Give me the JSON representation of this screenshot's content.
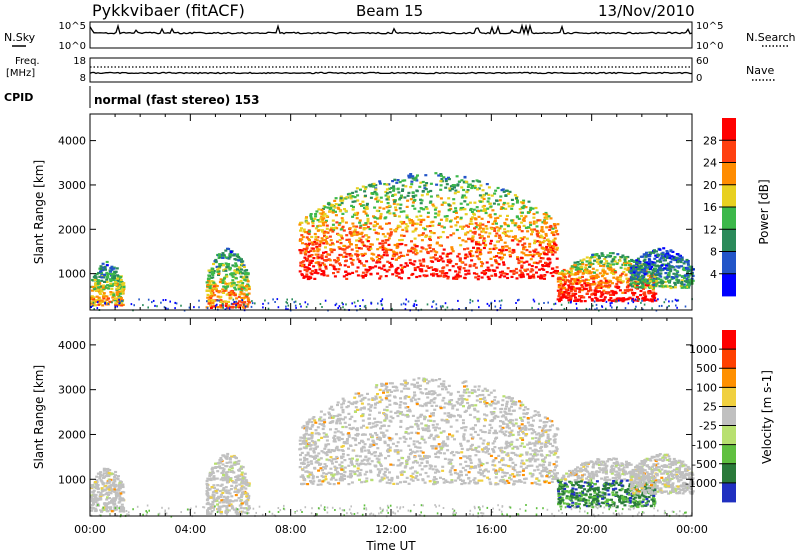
{
  "header": {
    "title": "Pykkvibaer (fitACF)",
    "beam": "Beam 15",
    "date": "13/Nov/2010"
  },
  "top_panels": {
    "nsky_label": "N.Sky",
    "nsky_ticks": [
      "10^5",
      "10^0"
    ],
    "nsearch_label": "N.Search",
    "nsearch_ticks": [
      "10^5",
      "10^0"
    ],
    "freq_label": "Freq.",
    "freq_unit": "[MHz]",
    "freq_ticks": [
      "18",
      "8"
    ],
    "nave_label": "Nave",
    "nave_ticks": [
      "60",
      "0"
    ],
    "cpid_label": "CPID",
    "cpid_text": "normal (fast stereo) 153"
  },
  "chart_data": [
    {
      "type": "heatmap",
      "name": "power",
      "ylabel": "Slant Range [km]",
      "xlabel": "Time UT",
      "xlim": [
        0,
        24
      ],
      "ylim": [
        180,
        4600
      ],
      "yticks": [
        1000,
        2000,
        3000,
        4000
      ],
      "ytick_labels": [
        "1000",
        "2000",
        "3000",
        "4000"
      ],
      "colorbar": {
        "label": "Power [dB]",
        "ticks": [
          "4",
          "8",
          "12",
          "16",
          "20",
          "24",
          "28"
        ],
        "colors": [
          "#0000ff",
          "#2255c8",
          "#2a8a5a",
          "#3cb84a",
          "#e8d020",
          "#ff8c00",
          "#ff4010",
          "#ff0000"
        ]
      },
      "scatter_regions": [
        {
          "t0": 0.0,
          "t1": 1.3,
          "r0": 300,
          "r1": 1300,
          "level": 0.55
        },
        {
          "t0": 4.6,
          "t1": 6.3,
          "r0": 250,
          "r1": 1600,
          "level": 0.6
        },
        {
          "t0": 8.3,
          "t1": 18.6,
          "r0": 900,
          "r1": 3300,
          "level": 0.75
        },
        {
          "t0": 18.6,
          "t1": 22.5,
          "r0": 400,
          "r1": 1500,
          "level": 0.8
        },
        {
          "t0": 21.5,
          "t1": 24.0,
          "r0": 700,
          "r1": 1600,
          "level": 0.3
        }
      ]
    },
    {
      "type": "heatmap",
      "name": "velocity",
      "ylabel": "Slant Range [km]",
      "xlabel": "Time UT",
      "xlim": [
        0,
        24
      ],
      "ylim": [
        180,
        4600
      ],
      "yticks": [
        1000,
        2000,
        3000,
        4000
      ],
      "ytick_labels": [
        "1000",
        "2000",
        "3000",
        "4000"
      ],
      "xticks": [
        0,
        4,
        8,
        12,
        16,
        20,
        24
      ],
      "xtick_labels": [
        "00:00",
        "04:00",
        "08:00",
        "12:00",
        "16:00",
        "20:00",
        "00:00"
      ],
      "colorbar": {
        "label": "Velocity [m s-1]",
        "ticks": [
          "1000",
          "500",
          "100",
          "25",
          "-25",
          "-100",
          "-500",
          "-1000"
        ],
        "colors": [
          "#2030c0",
          "#2a7a3a",
          "#60c040",
          "#b8e070",
          "#c0c0c0",
          "#f0d040",
          "#ff9000",
          "#ff4000",
          "#ff0000"
        ]
      },
      "scatter_regions": [
        {
          "t0": 0.0,
          "t1": 1.3,
          "r0": 300,
          "r1": 1300,
          "level": 0.0
        },
        {
          "t0": 4.6,
          "t1": 6.3,
          "r0": 250,
          "r1": 1600,
          "level": 0.0
        },
        {
          "t0": 8.3,
          "t1": 18.6,
          "r0": 900,
          "r1": 3300,
          "level": 0.0
        },
        {
          "t0": 18.6,
          "t1": 22.5,
          "r0": 400,
          "r1": 1500,
          "level": 0.6
        },
        {
          "t0": 21.5,
          "t1": 24.0,
          "r0": 700,
          "r1": 1600,
          "level": 0.0
        }
      ]
    }
  ]
}
